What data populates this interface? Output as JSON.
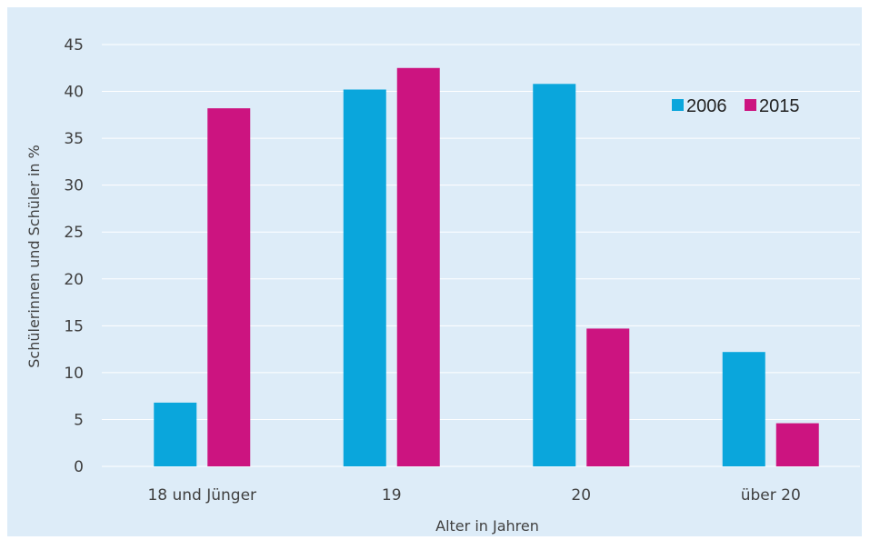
{
  "chart_data": {
    "type": "bar",
    "title": "",
    "xlabel": "Alter in Jahren",
    "ylabel": "Schülerinnen und Schüler in %",
    "categories": [
      "18 und Jünger",
      "19",
      "20",
      "über 20"
    ],
    "series": [
      {
        "name": "2006",
        "values": [
          6.8,
          40.2,
          40.8,
          12.2
        ],
        "color": "#0aa6dc"
      },
      {
        "name": "2015",
        "values": [
          38.2,
          42.5,
          14.7,
          4.6
        ],
        "color": "#cc1480"
      }
    ],
    "ylim": [
      0,
      45
    ],
    "yticks": [
      0,
      5,
      10,
      15,
      20,
      25,
      30,
      35,
      40,
      45
    ],
    "grid": true,
    "legend_position": "top-right",
    "background_color": "#ddecf8",
    "grid_color": "#ffffff"
  }
}
